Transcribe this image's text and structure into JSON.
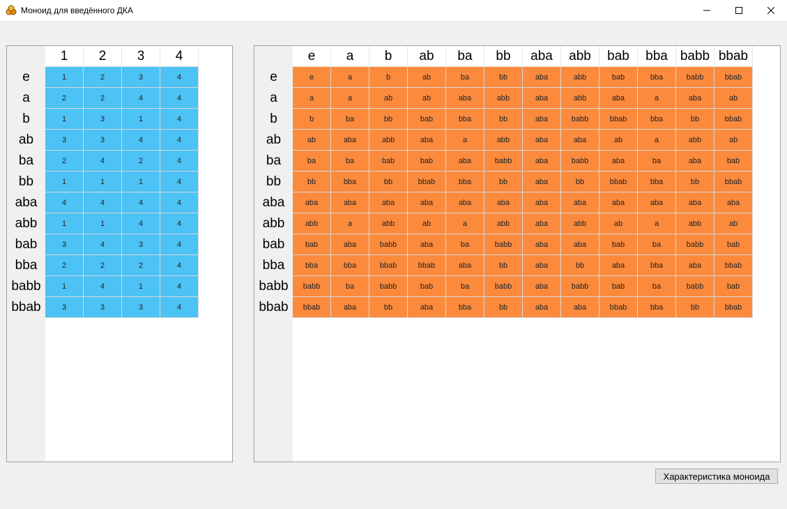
{
  "window": {
    "title": "Моноид для введённого ДКА"
  },
  "transition_table": {
    "columns": [
      "1",
      "2",
      "3",
      "4"
    ],
    "rows": [
      {
        "label": "e",
        "cells": [
          "1",
          "2",
          "3",
          "4"
        ]
      },
      {
        "label": "a",
        "cells": [
          "2",
          "2",
          "4",
          "4"
        ]
      },
      {
        "label": "b",
        "cells": [
          "1",
          "3",
          "1",
          "4"
        ]
      },
      {
        "label": "ab",
        "cells": [
          "3",
          "3",
          "4",
          "4"
        ]
      },
      {
        "label": "ba",
        "cells": [
          "2",
          "4",
          "2",
          "4"
        ]
      },
      {
        "label": "bb",
        "cells": [
          "1",
          "1",
          "1",
          "4"
        ]
      },
      {
        "label": "aba",
        "cells": [
          "4",
          "4",
          "4",
          "4"
        ]
      },
      {
        "label": "abb",
        "cells": [
          "1",
          "1",
          "4",
          "4"
        ]
      },
      {
        "label": "bab",
        "cells": [
          "3",
          "4",
          "3",
          "4"
        ]
      },
      {
        "label": "bba",
        "cells": [
          "2",
          "2",
          "2",
          "4"
        ]
      },
      {
        "label": "babb",
        "cells": [
          "1",
          "4",
          "1",
          "4"
        ]
      },
      {
        "label": "bbab",
        "cells": [
          "3",
          "3",
          "3",
          "4"
        ]
      }
    ]
  },
  "cayley_table": {
    "columns": [
      "e",
      "a",
      "b",
      "ab",
      "ba",
      "bb",
      "aba",
      "abb",
      "bab",
      "bba",
      "babb",
      "bbab"
    ],
    "rows": [
      {
        "label": "e",
        "cells": [
          "e",
          "a",
          "b",
          "ab",
          "ba",
          "bb",
          "aba",
          "abb",
          "bab",
          "bba",
          "babb",
          "bbab"
        ]
      },
      {
        "label": "a",
        "cells": [
          "a",
          "a",
          "ab",
          "ab",
          "aba",
          "abb",
          "aba",
          "abb",
          "aba",
          "a",
          "aba",
          "ab"
        ]
      },
      {
        "label": "b",
        "cells": [
          "b",
          "ba",
          "bb",
          "bab",
          "bba",
          "bb",
          "aba",
          "babb",
          "bbab",
          "bba",
          "bb",
          "bbab"
        ]
      },
      {
        "label": "ab",
        "cells": [
          "ab",
          "aba",
          "abb",
          "aba",
          "a",
          "abb",
          "aba",
          "aba",
          "ab",
          "a",
          "abb",
          "ab"
        ]
      },
      {
        "label": "ba",
        "cells": [
          "ba",
          "ba",
          "bab",
          "bab",
          "aba",
          "babb",
          "aba",
          "babb",
          "aba",
          "ba",
          "aba",
          "bab"
        ]
      },
      {
        "label": "bb",
        "cells": [
          "bb",
          "bba",
          "bb",
          "bbab",
          "bba",
          "bb",
          "aba",
          "bb",
          "bbab",
          "bba",
          "bb",
          "bbab"
        ]
      },
      {
        "label": "aba",
        "cells": [
          "aba",
          "aba",
          "aba",
          "aba",
          "aba",
          "aba",
          "aba",
          "aba",
          "aba",
          "aba",
          "aba",
          "aba"
        ]
      },
      {
        "label": "abb",
        "cells": [
          "abb",
          "a",
          "abb",
          "ab",
          "a",
          "abb",
          "aba",
          "abb",
          "ab",
          "a",
          "abb",
          "ab"
        ]
      },
      {
        "label": "bab",
        "cells": [
          "bab",
          "aba",
          "babb",
          "aba",
          "ba",
          "babb",
          "aba",
          "aba",
          "bab",
          "ba",
          "babb",
          "bab"
        ]
      },
      {
        "label": "bba",
        "cells": [
          "bba",
          "bba",
          "bbab",
          "bbab",
          "aba",
          "bb",
          "aba",
          "bb",
          "aba",
          "bba",
          "aba",
          "bbab"
        ]
      },
      {
        "label": "babb",
        "cells": [
          "babb",
          "ba",
          "babb",
          "bab",
          "ba",
          "babb",
          "aba",
          "babb",
          "bab",
          "ba",
          "babb",
          "bab"
        ]
      },
      {
        "label": "bbab",
        "cells": [
          "bbab",
          "aba",
          "bb",
          "aba",
          "bba",
          "bb",
          "aba",
          "aba",
          "bbab",
          "bba",
          "bb",
          "bbab"
        ]
      }
    ]
  },
  "actions": {
    "characteristics_button": "Характеристика моноида"
  },
  "colors": {
    "transition_cell": "#4cc2f5",
    "cayley_cell": "#fb8a3d"
  },
  "icons": {
    "app": "app-icon",
    "minimize": "minimize-icon",
    "maximize": "maximize-icon",
    "close": "close-icon"
  }
}
